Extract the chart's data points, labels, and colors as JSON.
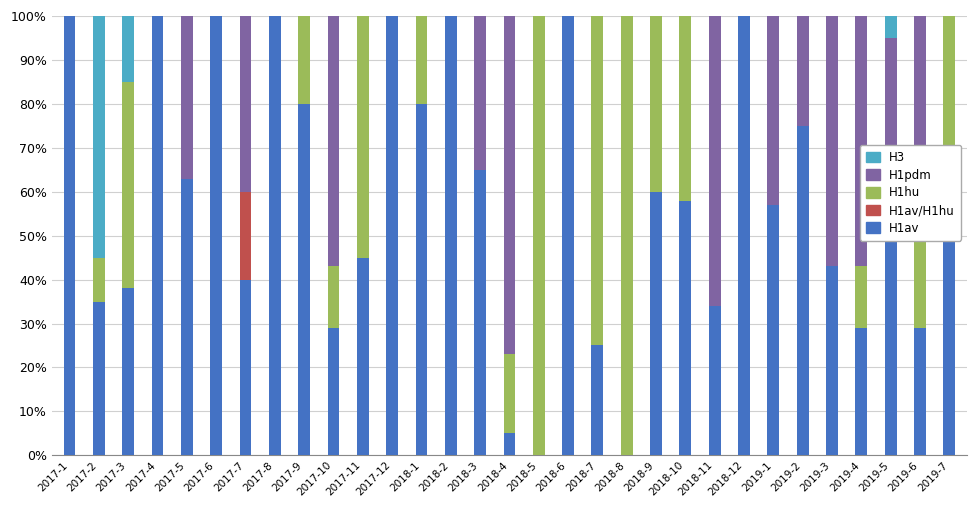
{
  "categories": [
    "2017-1",
    "2017-2",
    "2017-3",
    "2017-4",
    "2017-5",
    "2017-6",
    "2017-7",
    "2017-8",
    "2017-9",
    "2017-10",
    "2017-11",
    "2017-12",
    "2018-1",
    "2018-2",
    "2018-3",
    "2018-4",
    "2018-5",
    "2018-6",
    "2018-7",
    "2018-8",
    "2018-9",
    "2018-10",
    "2018-11",
    "2018-12",
    "2019-1",
    "2019-2",
    "2019-3",
    "2019-4",
    "2019-5",
    "2019-6",
    "2019-7"
  ],
  "H1av": [
    100,
    35,
    38,
    100,
    63,
    100,
    40,
    100,
    80,
    29,
    45,
    100,
    80,
    100,
    65,
    5,
    0,
    100,
    25,
    0,
    60,
    58,
    34,
    100,
    57,
    75,
    43,
    29,
    57,
    29,
    50
  ],
  "H1av_H1hu": [
    0,
    0,
    0,
    0,
    0,
    0,
    20,
    0,
    0,
    0,
    0,
    0,
    0,
    0,
    0,
    0,
    0,
    0,
    0,
    0,
    0,
    0,
    0,
    0,
    0,
    0,
    0,
    0,
    0,
    0,
    0
  ],
  "H1hu": [
    0,
    10,
    47,
    0,
    0,
    0,
    0,
    0,
    20,
    14,
    55,
    0,
    20,
    0,
    0,
    18,
    100,
    0,
    75,
    100,
    40,
    42,
    0,
    0,
    0,
    0,
    0,
    14,
    0,
    21,
    50
  ],
  "H1pdm": [
    0,
    0,
    0,
    0,
    37,
    0,
    40,
    0,
    0,
    57,
    0,
    0,
    0,
    0,
    35,
    77,
    0,
    0,
    0,
    0,
    0,
    0,
    66,
    0,
    43,
    25,
    57,
    57,
    38,
    50,
    0
  ],
  "H3": [
    0,
    55,
    15,
    0,
    0,
    0,
    0,
    0,
    0,
    0,
    0,
    0,
    0,
    0,
    0,
    0,
    0,
    0,
    0,
    0,
    0,
    0,
    0,
    0,
    0,
    0,
    0,
    0,
    5,
    0,
    0
  ],
  "colors": {
    "H1av": "#4472C4",
    "H1av_H1hu": "#C0504D",
    "H1hu": "#9BBB59",
    "H1pdm": "#8064A2",
    "H3": "#4BACC6"
  },
  "legend_labels": {
    "H3": "H3",
    "H1pdm": "H1pdm",
    "H1hu": "H1hu",
    "H1av_H1hu": "H1av/H1hu",
    "H1av": "H1av"
  },
  "figsize": [
    9.78,
    5.09
  ],
  "dpi": 100,
  "bar_width": 0.4,
  "ylim": [
    0,
    100
  ],
  "yticks": [
    0,
    10,
    20,
    30,
    40,
    50,
    60,
    70,
    80,
    90,
    100
  ],
  "xlabel_fontsize": 7.5,
  "ylabel_fontsize": 9,
  "legend_fontsize": 8.5,
  "stack_order": [
    "H1av",
    "H1av_H1hu",
    "H1hu",
    "H1pdm",
    "H3"
  ],
  "legend_order": [
    "H3",
    "H1pdm",
    "H1hu",
    "H1av_H1hu",
    "H1av"
  ],
  "background_color": "#ffffff",
  "grid_color": "#d0d0d0"
}
